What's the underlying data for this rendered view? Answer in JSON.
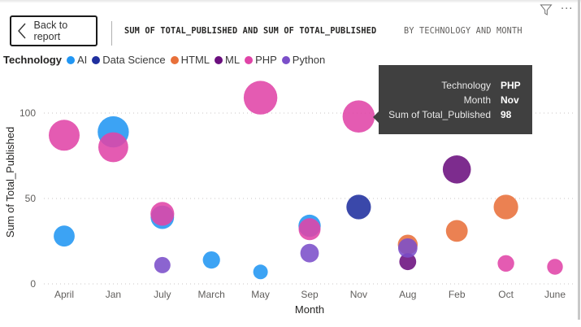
{
  "header": {
    "back_label": "Back to report",
    "title_main": "SUM OF TOTAL_PUBLISHED AND SUM OF TOTAL_PUBLISHED",
    "title_sub": "BY TECHNOLOGY AND MONTH",
    "icons": [
      "filter-icon",
      "more-options-icon"
    ],
    "more_glyph": "···"
  },
  "legend": {
    "title": "Technology",
    "items": [
      {
        "label": "AI",
        "color": "#2196F3"
      },
      {
        "label": "Data Science",
        "color": "#1F2F9E"
      },
      {
        "label": "HTML",
        "color": "#E8703A"
      },
      {
        "label": "ML",
        "color": "#6B0F7E"
      },
      {
        "label": "PHP",
        "color": "#E044A7"
      },
      {
        "label": "Python",
        "color": "#7B4FC9"
      }
    ]
  },
  "tooltip": {
    "rows": [
      {
        "key": "Technology",
        "value": "PHP"
      },
      {
        "key": "Month",
        "value": "Nov"
      },
      {
        "key": "Sum of Total_Published",
        "value": "98"
      }
    ]
  },
  "chart_data": {
    "type": "scatter",
    "title": "Sum of Total_Published and Sum of Total_Published by Technology and Month",
    "xlabel": "Month",
    "ylabel": "Sum of Total_Published",
    "categories": [
      "April",
      "Jan",
      "July",
      "March",
      "May",
      "Sep",
      "Nov",
      "Aug",
      "Feb",
      "Oct",
      "June"
    ],
    "ylim": [
      0,
      115
    ],
    "yticks": [
      0,
      50,
      100
    ],
    "grid": true,
    "legend_position": "top-left",
    "size_encodes": "Sum of Total_Published",
    "series": [
      {
        "name": "AI",
        "color": "#2196F3",
        "points": [
          {
            "x": "April",
            "y": 28
          },
          {
            "x": "Jan",
            "y": 89
          },
          {
            "x": "July",
            "y": 39
          },
          {
            "x": "March",
            "y": 14
          },
          {
            "x": "May",
            "y": 7
          },
          {
            "x": "Sep",
            "y": 34
          }
        ]
      },
      {
        "name": "Data Science",
        "color": "#1F2F9E",
        "points": [
          {
            "x": "Nov",
            "y": 45
          }
        ]
      },
      {
        "name": "HTML",
        "color": "#E8703A",
        "points": [
          {
            "x": "Aug",
            "y": 23
          },
          {
            "x": "Feb",
            "y": 31
          },
          {
            "x": "Oct",
            "y": 45
          }
        ]
      },
      {
        "name": "ML",
        "color": "#6B0F7E",
        "points": [
          {
            "x": "Aug",
            "y": 13
          },
          {
            "x": "Feb",
            "y": 67
          }
        ]
      },
      {
        "name": "PHP",
        "color": "#E044A7",
        "points": [
          {
            "x": "April",
            "y": 87
          },
          {
            "x": "Jan",
            "y": 80
          },
          {
            "x": "July",
            "y": 41
          },
          {
            "x": "May",
            "y": 109
          },
          {
            "x": "Sep",
            "y": 32
          },
          {
            "x": "Nov",
            "y": 98
          },
          {
            "x": "Oct",
            "y": 12
          },
          {
            "x": "June",
            "y": 10
          }
        ]
      },
      {
        "name": "Python",
        "color": "#7B4FC9",
        "points": [
          {
            "x": "July",
            "y": 11
          },
          {
            "x": "Sep",
            "y": 18
          },
          {
            "x": "Aug",
            "y": 21
          }
        ]
      }
    ]
  }
}
